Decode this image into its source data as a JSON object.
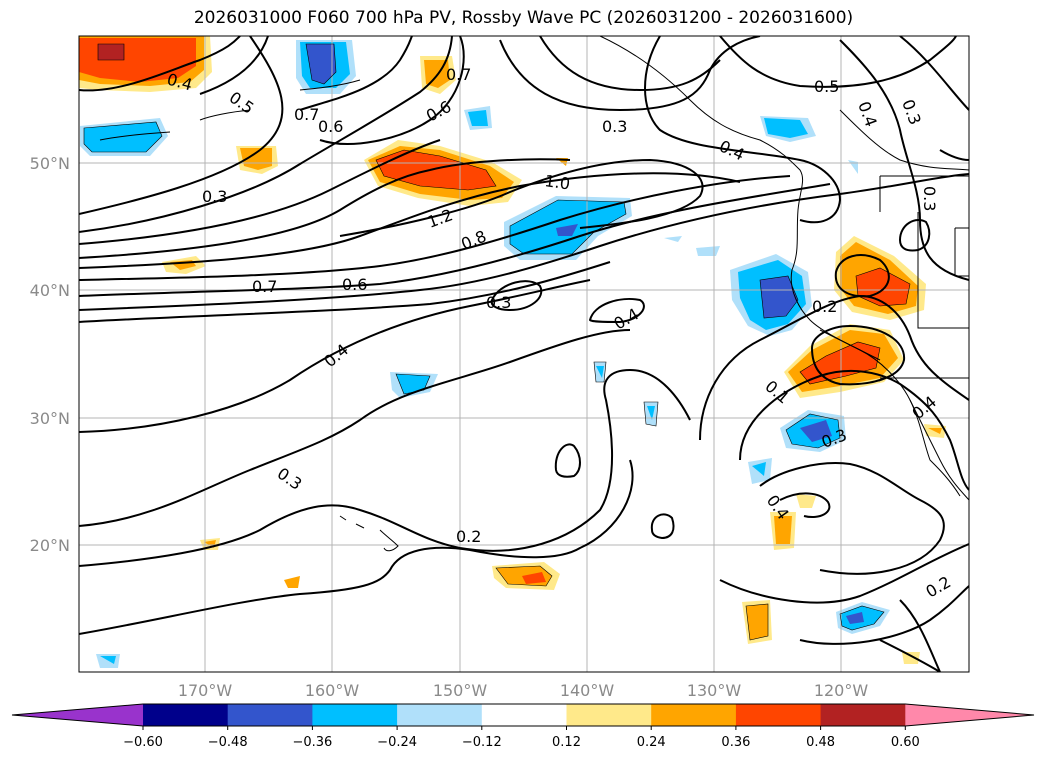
{
  "title": "2026031000 F060 700 hPa PV, Rossby Wave PC (2026031200 - 2026031600)",
  "lat_labels": [
    "50°N",
    "40°N",
    "30°N",
    "20°N"
  ],
  "lon_labels": [
    "170°W",
    "160°W",
    "150°W",
    "140°W",
    "130°W",
    "120°W"
  ],
  "contour_labels": [
    "0.4",
    "0.5",
    "0.7",
    "0.6",
    "0.7",
    "0.6",
    "0.3",
    "0.5",
    "0.4",
    "0.3",
    "0.4",
    "0.3",
    "1.0",
    "1.2",
    "0.8",
    "0.3",
    "0.7",
    "0.6",
    "0.3",
    "0.4",
    "0.2",
    "0.4",
    "0.1",
    "0.3",
    "0.4",
    "0.3",
    "0.4",
    "0.2",
    "0.2"
  ],
  "colorbar": {
    "ticks": [
      "−0.60",
      "−0.48",
      "−0.36",
      "−0.24",
      "−0.12",
      "0.12",
      "0.24",
      "0.36",
      "0.48",
      "0.60"
    ],
    "colors": [
      "#9933cc",
      "#00008b",
      "#3355cc",
      "#00bfff",
      "#b0e0fa",
      "#ffffff",
      "#ffe98a",
      "#ffa500",
      "#ff4500",
      "#b22222",
      "#ff88aa"
    ]
  },
  "colors": {
    "neg_light": "#b0e0fa",
    "neg_mid": "#00bfff",
    "neg_strong": "#3355cc",
    "pos_light": "#ffe98a",
    "pos_mid": "#ffa500",
    "pos_strong": "#ff4500",
    "pos_max": "#b22222"
  }
}
